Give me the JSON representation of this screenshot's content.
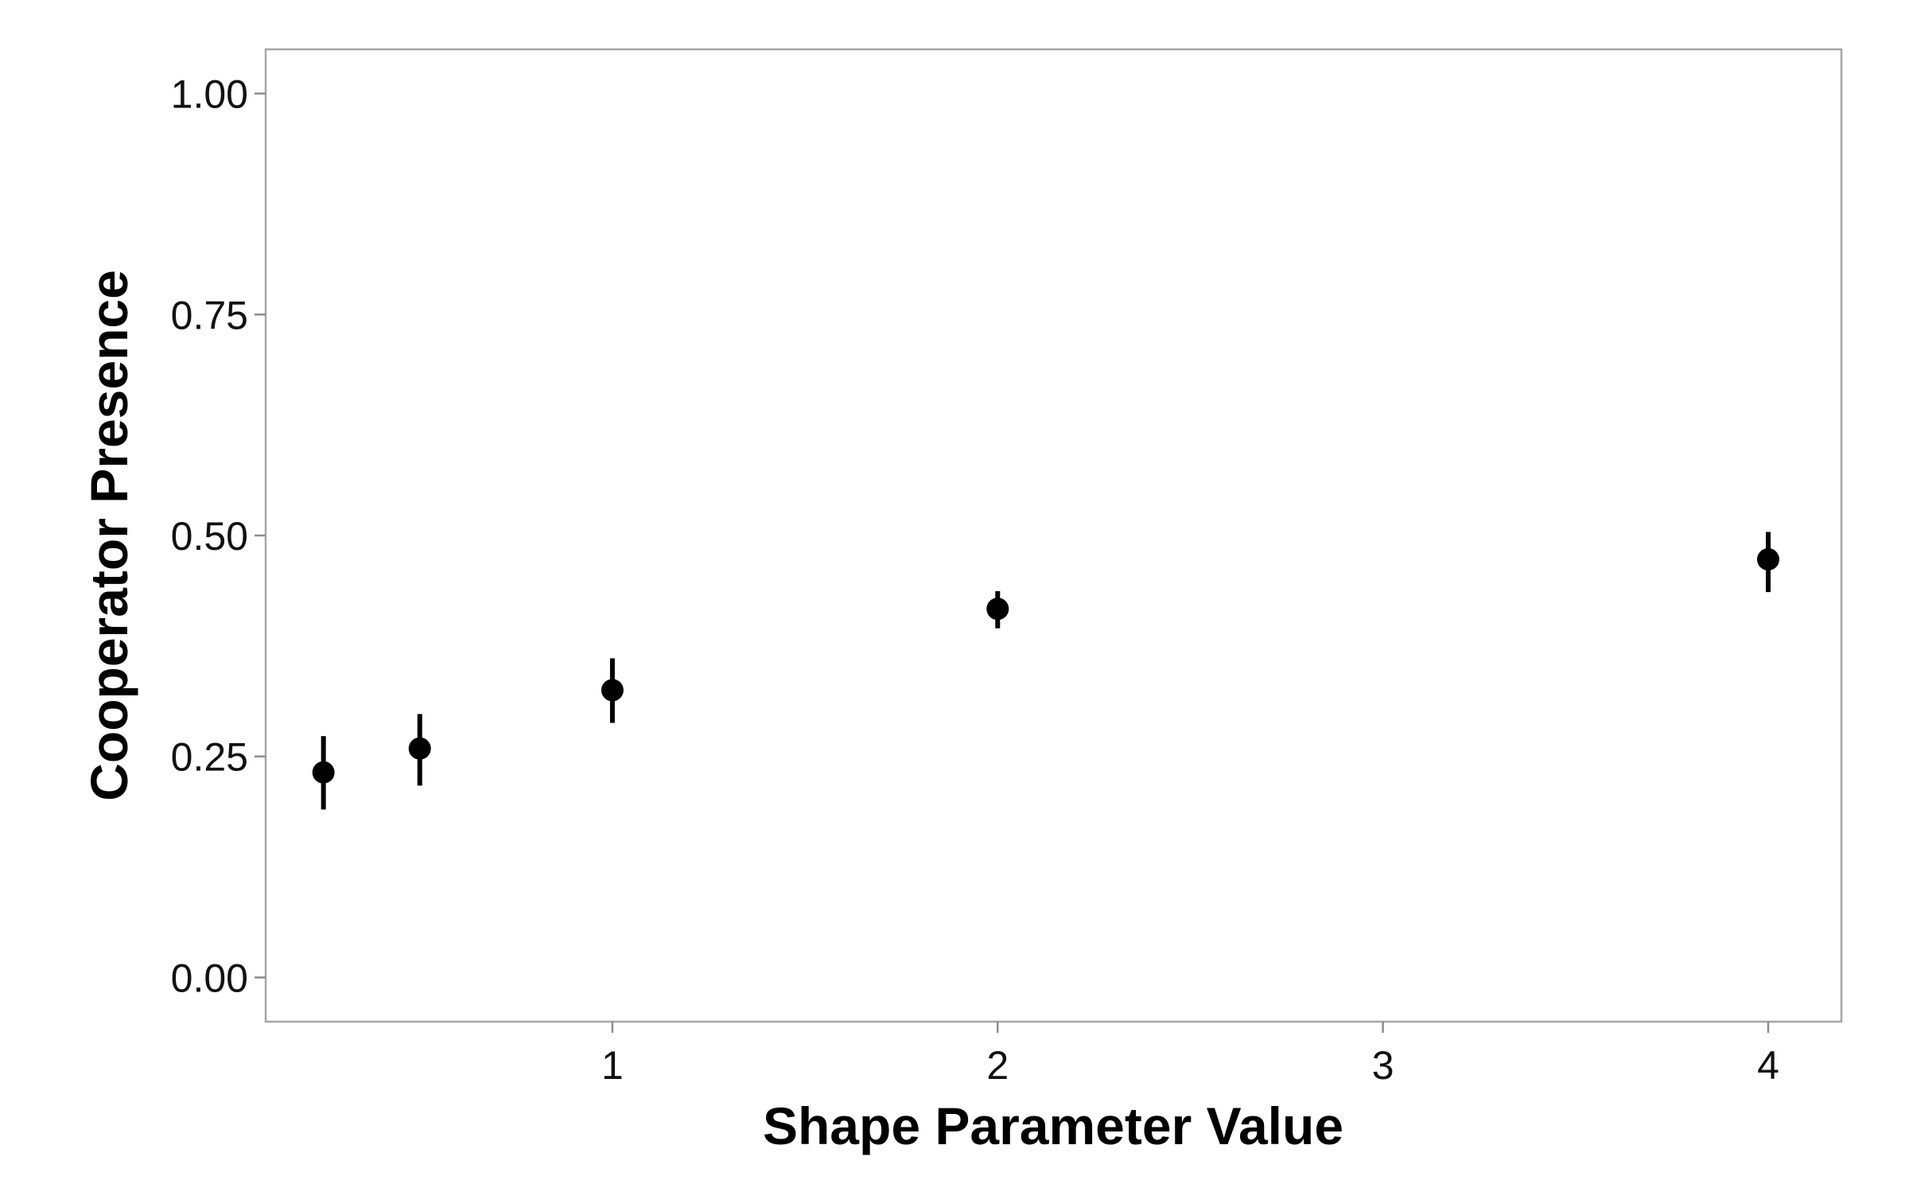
{
  "chart_data": {
    "type": "scatter",
    "title": "",
    "xlabel": "Shape Parameter Value",
    "ylabel": "Cooperator Presence",
    "xlim": [
      0.1,
      4.19
    ],
    "ylim": [
      -0.05,
      1.05
    ],
    "x_ticks": [
      1,
      2,
      3,
      4
    ],
    "x_tick_labels": [
      "1",
      "2",
      "3",
      "4"
    ],
    "y_ticks": [
      0,
      0.25,
      0.5,
      0.75,
      1
    ],
    "y_tick_labels": [
      "0.00",
      "0.25",
      "0.50",
      "0.75",
      "1.00"
    ],
    "grid": false,
    "legend": "none",
    "series": [
      {
        "points": [
          {
            "x": 0.25,
            "y": 0.232,
            "y_low": 0.19,
            "y_high": 0.273
          },
          {
            "x": 0.5,
            "y": 0.259,
            "y_low": 0.217,
            "y_high": 0.298
          },
          {
            "x": 1,
            "y": 0.325,
            "y_low": 0.288,
            "y_high": 0.361
          },
          {
            "x": 2,
            "y": 0.417,
            "y_low": 0.395,
            "y_high": 0.437
          },
          {
            "x": 4,
            "y": 0.473,
            "y_low": 0.436,
            "y_high": 0.504
          }
        ],
        "color": "#000000"
      }
    ],
    "colors": {
      "panel_border": "#a6a6a6",
      "tick": "#8c8c8c",
      "marker": "#000000"
    }
  }
}
